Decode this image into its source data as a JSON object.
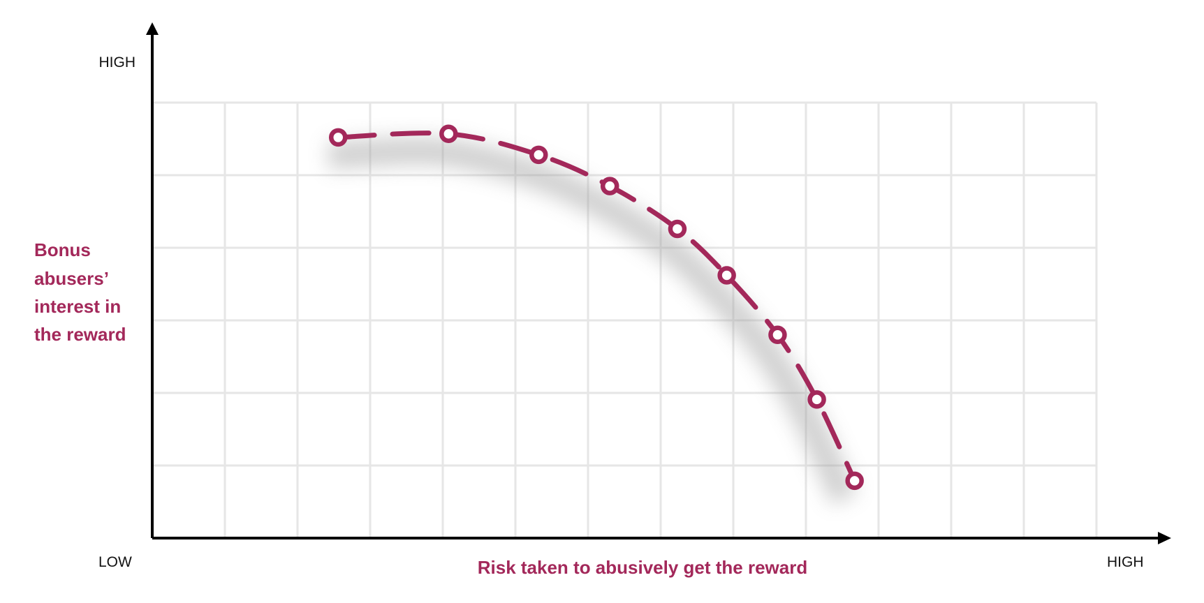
{
  "chart_data": {
    "type": "line",
    "title": "",
    "xlabel": "Risk taken to abusively get the reward",
    "ylabel_lines": [
      "Bonus",
      "abusers’",
      "interest in",
      "the reward"
    ],
    "x_tick_labels": {
      "low": "LOW",
      "high": "HIGH"
    },
    "y_tick_labels": {
      "high": "HIGH"
    },
    "xlim": [
      0,
      13
    ],
    "ylim": [
      0,
      6
    ],
    "grid": true,
    "series": [
      {
        "x": [
          2.56,
          4.08,
          5.32,
          6.3,
          7.23,
          7.91,
          8.61,
          9.15,
          9.67
        ],
        "y": [
          5.52,
          5.57,
          5.28,
          4.85,
          4.26,
          3.62,
          2.8,
          1.91,
          0.79
        ],
        "line_style": "dashed",
        "marker": "hollow-circle"
      }
    ],
    "colors": {
      "accent": "#a3285a",
      "axis": "#000000",
      "grid": "#e6e6e6"
    }
  }
}
